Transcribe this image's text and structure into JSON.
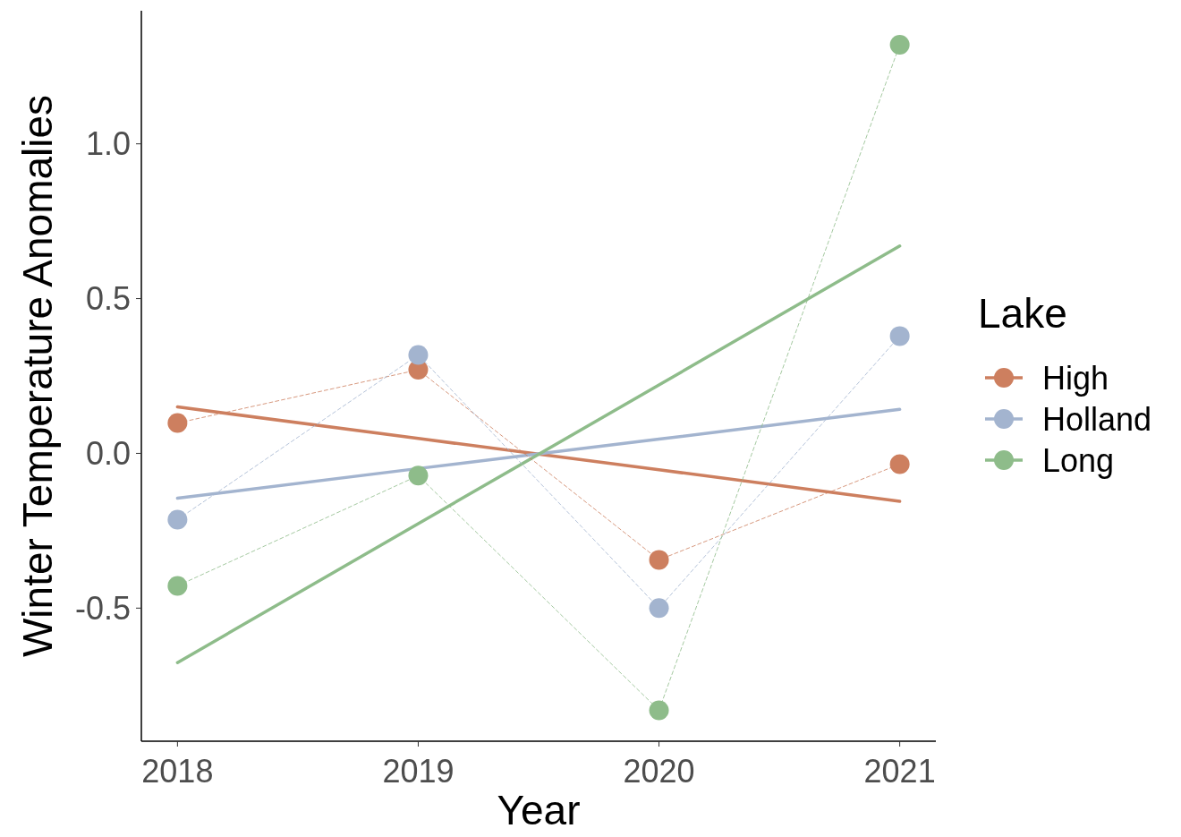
{
  "chart_data": {
    "type": "line",
    "xlabel": "Year",
    "ylabel": "Winter Temperature Anomalies",
    "legend_title": "Lake",
    "x": [
      2018,
      2019,
      2020,
      2021
    ],
    "xlim": [
      2017.85,
      2021.15
    ],
    "xticks": [
      2018,
      2019,
      2020,
      2021
    ],
    "ylim": [
      -0.93,
      1.43
    ],
    "yticks": [
      {
        "value": -0.5,
        "label": "-0.5"
      },
      {
        "value": 0,
        "label": "0.0"
      },
      {
        "value": 0.5,
        "label": "0.5"
      },
      {
        "value": 1,
        "label": "1.0"
      }
    ],
    "grid": false,
    "legend": "right",
    "marker": "circle",
    "line_style": "dashed",
    "series": [
      {
        "name": "High",
        "color": "#cd7f5f",
        "values": [
          0.098,
          0.27,
          -0.344,
          -0.035
        ]
      },
      {
        "name": "Holland",
        "color": "#a3b4cf",
        "values": [
          -0.214,
          0.318,
          -0.5,
          0.379
        ]
      },
      {
        "name": "Long",
        "color": "#8ebc8a",
        "values": [
          -0.428,
          -0.072,
          -0.83,
          1.32
        ]
      },
      {
        "type": "line",
        "color": "#cd7f5f",
        "values": [
          0.15,
          0.048,
          -0.053,
          -0.155
        ],
        "marker": "none",
        "line_style": "solid"
      },
      {
        "type": "line",
        "color": "#a3b4cf",
        "values": [
          -0.145,
          -0.049,
          0.046,
          0.142
        ],
        "marker": "none",
        "line_style": "solid"
      },
      {
        "type": "line",
        "color": "#8ebc8a",
        "values": [
          -0.676,
          -0.227,
          0.221,
          0.67
        ],
        "marker": "none",
        "line_style": "solid"
      }
    ]
  }
}
